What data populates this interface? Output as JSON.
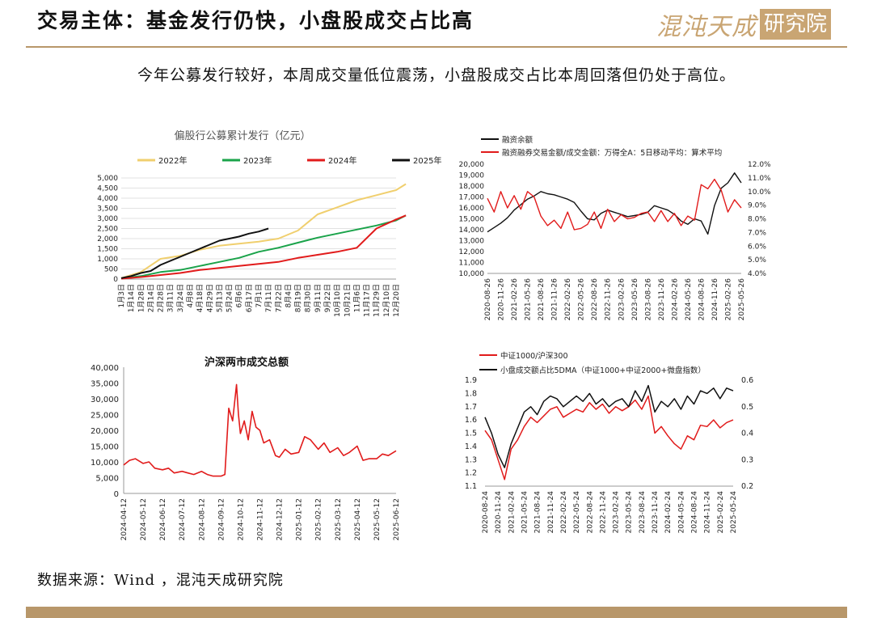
{
  "header": {
    "title": "交易主体：基金发行仍快，小盘股成交占比高",
    "logo_script": "混沌天成",
    "logo_box": "研究院"
  },
  "subtitle": "今年公募发行较好，本周成交量低位震荡，小盘股成交占比本周回落但仍处于高位。",
  "source": "数据来源：Wind ，混沌天成研究院",
  "colors": {
    "accent": "#b8976a",
    "red": "#e11b1b",
    "black": "#111111",
    "green": "#1aa34a",
    "yellow": "#f0cf6e"
  },
  "chart_data": [
    {
      "id": "fund",
      "type": "line",
      "title": "偏股行公募累计发行（亿元）",
      "x_ticks": [
        "1月3日",
        "1月14日",
        "1月28日",
        "2月14日",
        "2月28日",
        "3月11日",
        "3月24日",
        "4月8日",
        "4月18日",
        "4月29日",
        "5月13日",
        "5月24日",
        "6月6日",
        "6月17日",
        "7月1日",
        "7月11日",
        "7月22日",
        "8月4日",
        "8月19日",
        "8月30日",
        "9月11日",
        "9月22日",
        "10月10日",
        "10月21日",
        "11月6日",
        "11月17日",
        "11月29日",
        "12月10日",
        "12月20日"
      ],
      "ylim": [
        0,
        5000
      ],
      "y_ticks": [
        "0",
        "500",
        "1,000",
        "1,500",
        "2,000",
        "2,500",
        "3,000",
        "3,500",
        "4,000",
        "4,500",
        "5,000"
      ],
      "series": [
        {
          "name": "2022年",
          "color": "#f0cf6e",
          "x": [
            0,
            2,
            4,
            6,
            8,
            10,
            12,
            14,
            16,
            18,
            20,
            22,
            24,
            26,
            28,
            29
          ],
          "values": [
            50,
            350,
            1000,
            1150,
            1450,
            1650,
            1750,
            1850,
            2000,
            2400,
            3200,
            3550,
            3900,
            4150,
            4400,
            4700
          ]
        },
        {
          "name": "2023年",
          "color": "#1aa34a",
          "x": [
            0,
            2,
            4,
            6,
            8,
            10,
            12,
            14,
            16,
            18,
            20,
            22,
            24,
            26,
            28,
            29
          ],
          "values": [
            30,
            150,
            350,
            450,
            650,
            850,
            1050,
            1350,
            1550,
            1800,
            2050,
            2250,
            2450,
            2650,
            2900,
            3150
          ]
        },
        {
          "name": "2024年",
          "color": "#e11b1b",
          "x": [
            0,
            2,
            4,
            6,
            8,
            10,
            12,
            14,
            16,
            18,
            20,
            22,
            24,
            26,
            28,
            29
          ],
          "values": [
            20,
            100,
            200,
            300,
            450,
            550,
            650,
            750,
            850,
            1050,
            1200,
            1350,
            1550,
            2500,
            2950,
            3150
          ]
        },
        {
          "name": "2025年",
          "color": "#111111",
          "x": [
            0,
            1,
            2,
            3,
            4,
            5,
            6,
            7,
            8,
            9,
            10,
            11,
            12,
            13,
            14,
            15
          ],
          "values": [
            50,
            150,
            300,
            400,
            700,
            900,
            1100,
            1300,
            1500,
            1700,
            1900,
            2000,
            2100,
            2250,
            2350,
            2500
          ]
        }
      ]
    },
    {
      "id": "margin",
      "type": "line",
      "title": "",
      "x_ticks": [
        "2020-08-26",
        "2020-11-26",
        "2021-02-26",
        "2021-05-26",
        "2021-08-26",
        "2021-11-26",
        "2022-02-26",
        "2022-05-26",
        "2022-08-26",
        "2022-11-26",
        "2023-02-26",
        "2023-05-26",
        "2023-08-26",
        "2023-11-26",
        "2024-02-26",
        "2024-05-26",
        "2024-08-26",
        "2024-11-26",
        "2025-02-26",
        "2025-05-26"
      ],
      "ylim_left": [
        10000,
        20000
      ],
      "y_ticks_left": [
        "10,000",
        "11,000",
        "12,000",
        "13,000",
        "14,000",
        "15,000",
        "16,000",
        "17,000",
        "18,000",
        "19,000",
        "20,000"
      ],
      "ylim_right": [
        4.0,
        12.0
      ],
      "y_ticks_right": [
        "4.0%",
        "5.0%",
        "6.0%",
        "7.0%",
        "8.0%",
        "9.0%",
        "10.0%",
        "11.0%",
        "12.0%"
      ],
      "series": [
        {
          "name": "融资余额",
          "color": "#111111",
          "axis": "left",
          "x": [
            0,
            0.5,
            1,
            1.5,
            2,
            2.5,
            3,
            3.5,
            4,
            4.5,
            5,
            5.5,
            6,
            6.5,
            7,
            7.5,
            8,
            8.5,
            9,
            9.5,
            10,
            10.5,
            11,
            11.5,
            12,
            12.5,
            13,
            13.5,
            14,
            14.5,
            15,
            15.5,
            16,
            16.5,
            17,
            17.5,
            18,
            18.5,
            19
          ],
          "values": [
            13800,
            14200,
            14600,
            15100,
            15800,
            16300,
            16800,
            17100,
            17500,
            17300,
            17200,
            17000,
            16800,
            16500,
            15700,
            15000,
            14900,
            15500,
            15800,
            15600,
            15400,
            15200,
            15300,
            15400,
            15600,
            16200,
            16000,
            15800,
            15400,
            14800,
            14500,
            15000,
            14800,
            13600,
            16200,
            17800,
            18300,
            19200,
            18300
          ]
        },
        {
          "name": "融资融券交易金额/成交金额：万得全A：5日移动平均：算术平均",
          "color": "#e11b1b",
          "axis": "right",
          "x": [
            0,
            0.5,
            1,
            1.5,
            2,
            2.5,
            3,
            3.5,
            4,
            4.5,
            5,
            5.5,
            6,
            6.5,
            7,
            7.5,
            8,
            8.5,
            9,
            9.5,
            10,
            10.5,
            11,
            11.5,
            12,
            12.5,
            13,
            13.5,
            14,
            14.5,
            15,
            15.5,
            16,
            16.5,
            17,
            17.5,
            18,
            18.5,
            19
          ],
          "values": [
            9.5,
            8.5,
            10.0,
            8.8,
            9.7,
            8.7,
            10.0,
            9.6,
            8.2,
            7.5,
            7.9,
            7.3,
            8.5,
            7.2,
            7.3,
            7.6,
            8.5,
            7.3,
            8.7,
            7.8,
            8.3,
            8.0,
            8.1,
            8.4,
            8.5,
            7.8,
            8.6,
            7.8,
            8.4,
            7.5,
            8.2,
            7.9,
            10.5,
            10.2,
            10.9,
            10.1,
            8.5,
            9.4,
            8.8
          ]
        }
      ],
      "legend": [
        "融资余额",
        "融资融券交易金额/成交金额：万得全A：5日移动平均：算术平均"
      ]
    },
    {
      "id": "turnover",
      "type": "line",
      "title": "沪深两市成交总额",
      "x_ticks": [
        "2024-04-12",
        "2024-05-12",
        "2024-06-12",
        "2024-07-12",
        "2024-08-12",
        "2024-09-12",
        "2024-10-12",
        "2024-11-12",
        "2024-12-12",
        "2025-01-12",
        "2025-02-12",
        "2025-03-12",
        "2025-04-12",
        "2025-05-12",
        "2025-06-12"
      ],
      "ylim": [
        0,
        40000
      ],
      "y_ticks": [
        "0",
        "5,000",
        "10,000",
        "15,000",
        "20,000",
        "25,000",
        "30,000",
        "35,000",
        "40,000"
      ],
      "series": [
        {
          "name": "成交总额",
          "color": "#e11b1b",
          "x": [
            0,
            0.3,
            0.6,
            1,
            1.3,
            1.6,
            2,
            2.3,
            2.6,
            3,
            3.3,
            3.6,
            4,
            4.3,
            4.6,
            5,
            5.2,
            5.4,
            5.6,
            5.8,
            5.9,
            6,
            6.2,
            6.4,
            6.6,
            6.8,
            7,
            7.2,
            7.5,
            7.8,
            8,
            8.3,
            8.6,
            9,
            9.3,
            9.6,
            10,
            10.3,
            10.6,
            11,
            11.3,
            11.6,
            12,
            12.3,
            12.6,
            13,
            13.3,
            13.6,
            14
          ],
          "values": [
            9000,
            10500,
            11000,
            9500,
            10000,
            8000,
            7500,
            8000,
            6500,
            7000,
            6500,
            6000,
            7000,
            6000,
            5500,
            5500,
            6000,
            27000,
            23000,
            34500,
            25000,
            19000,
            23000,
            17000,
            26000,
            21000,
            20000,
            16000,
            17000,
            12000,
            11500,
            14000,
            12500,
            13000,
            18000,
            17000,
            14000,
            16000,
            13000,
            14500,
            12000,
            13000,
            15000,
            10500,
            11000,
            11000,
            12500,
            12000,
            13500
          ]
        }
      ]
    },
    {
      "id": "smallcap",
      "type": "line",
      "title": "",
      "x_ticks": [
        "2020-08-24",
        "2020-11-24",
        "2021-02-24",
        "2021-05-24",
        "2021-08-24",
        "2021-11-24",
        "2022-02-24",
        "2022-05-24",
        "2022-08-24",
        "2022-11-24",
        "2023-02-24",
        "2023-05-24",
        "2023-08-24",
        "2023-11-24",
        "2024-02-24",
        "2024-05-24",
        "2024-08-24",
        "2024-11-24",
        "2025-02-24",
        "2025-05-24"
      ],
      "ylim_left": [
        1.1,
        1.9
      ],
      "y_ticks_left": [
        "1.1",
        "1.2",
        "1.3",
        "1.4",
        "1.5",
        "1.6",
        "1.7",
        "1.8",
        "1.9"
      ],
      "ylim_right": [
        0.2,
        0.6
      ],
      "y_ticks_right": [
        "0.2",
        "0.3",
        "0.4",
        "0.5",
        "0.6"
      ],
      "series": [
        {
          "name": "中证1000/沪深300",
          "color": "#e11b1b",
          "axis": "left",
          "x": [
            0,
            0.5,
            1,
            1.5,
            2,
            2.5,
            3,
            3.5,
            4,
            4.5,
            5,
            5.5,
            6,
            6.5,
            7,
            7.5,
            8,
            8.5,
            9,
            9.5,
            10,
            10.5,
            11,
            11.5,
            12,
            12.5,
            13,
            13.5,
            14,
            14.5,
            15,
            15.5,
            16,
            16.5,
            17,
            17.5,
            18,
            18.5,
            19
          ],
          "values": [
            1.52,
            1.45,
            1.3,
            1.15,
            1.38,
            1.45,
            1.55,
            1.62,
            1.58,
            1.63,
            1.68,
            1.7,
            1.62,
            1.65,
            1.68,
            1.66,
            1.73,
            1.68,
            1.72,
            1.65,
            1.7,
            1.67,
            1.7,
            1.75,
            1.68,
            1.78,
            1.5,
            1.55,
            1.48,
            1.42,
            1.38,
            1.48,
            1.45,
            1.56,
            1.55,
            1.6,
            1.54,
            1.58,
            1.6
          ]
        },
        {
          "name": "小盘成交额占比5DMA（中证1000+中证2000+微盘指数）",
          "color": "#111111",
          "axis": "right",
          "x": [
            0,
            0.5,
            1,
            1.5,
            2,
            2.5,
            3,
            3.5,
            4,
            4.5,
            5,
            5.5,
            6,
            6.5,
            7,
            7.5,
            8,
            8.5,
            9,
            9.5,
            10,
            10.5,
            11,
            11.5,
            12,
            12.5,
            13,
            13.5,
            14,
            14.5,
            15,
            15.5,
            16,
            16.5,
            17,
            17.5,
            18,
            18.5,
            19
          ],
          "values": [
            0.46,
            0.4,
            0.32,
            0.27,
            0.36,
            0.42,
            0.48,
            0.5,
            0.47,
            0.52,
            0.54,
            0.53,
            0.5,
            0.52,
            0.54,
            0.52,
            0.55,
            0.51,
            0.53,
            0.5,
            0.52,
            0.53,
            0.5,
            0.56,
            0.52,
            0.58,
            0.48,
            0.52,
            0.5,
            0.53,
            0.49,
            0.54,
            0.51,
            0.56,
            0.55,
            0.57,
            0.53,
            0.57,
            0.56
          ]
        }
      ],
      "legend": [
        "中证1000/沪深300",
        "小盘成交额占比5DMA（中证1000+中证2000+微盘指数）"
      ]
    }
  ]
}
